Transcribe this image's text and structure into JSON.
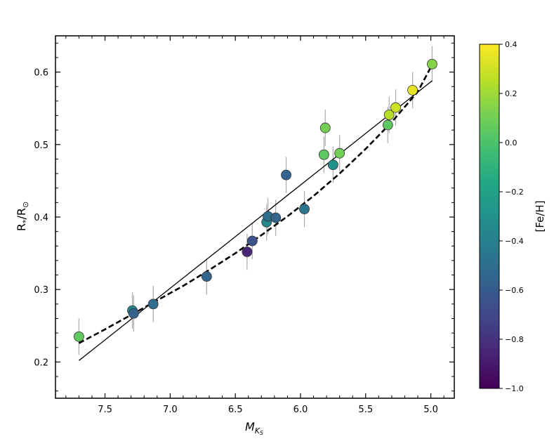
{
  "chart_data": {
    "type": "scatter",
    "xlabel_base": "M",
    "xlabel_sub": "K",
    "xlabel_subsub": "S",
    "ylabel_main": "R",
    "ylabel_star": "*",
    "ylabel_sep": "/R",
    "ylabel_sun": "⊙",
    "xlim": [
      7.88,
      4.82
    ],
    "ylim": [
      0.15,
      0.65
    ],
    "x_ticks": [
      7.5,
      7.0,
      6.5,
      6.0,
      5.5,
      5.0
    ],
    "x_tick_labels": [
      "7.5",
      "7.0",
      "6.5",
      "6.0",
      "5.5",
      "5.0"
    ],
    "y_ticks": [
      0.2,
      0.3,
      0.4,
      0.5,
      0.6
    ],
    "y_tick_labels": [
      "0.2",
      "0.3",
      "0.4",
      "0.5",
      "0.6"
    ],
    "grid": false,
    "colorbar": {
      "label": "[Fe/H]",
      "colormap": "viridis",
      "min": -1.0,
      "max": 0.4,
      "ticks": [
        -1.0,
        -0.8,
        -0.6,
        -0.4,
        -0.2,
        0.0,
        0.2,
        0.4
      ],
      "tick_labels": [
        "−1.0",
        "−0.8",
        "−0.6",
        "−0.4",
        "−0.2",
        "0.0",
        "0.2",
        "0.4"
      ]
    },
    "points": [
      {
        "x": 7.7,
        "y": 0.235,
        "yerr": 0.025,
        "feh": 0.05
      },
      {
        "x": 7.29,
        "y": 0.271,
        "yerr": 0.025,
        "feh": -0.35
      },
      {
        "x": 7.28,
        "y": 0.267,
        "yerr": 0.025,
        "feh": -0.55
      },
      {
        "x": 7.13,
        "y": 0.28,
        "yerr": 0.025,
        "feh": -0.5
      },
      {
        "x": 6.72,
        "y": 0.318,
        "yerr": 0.025,
        "feh": -0.55
      },
      {
        "x": 6.41,
        "y": 0.352,
        "yerr": 0.025,
        "feh": -0.85
      },
      {
        "x": 6.37,
        "y": 0.367,
        "yerr": 0.025,
        "feh": -0.65
      },
      {
        "x": 6.26,
        "y": 0.393,
        "yerr": 0.025,
        "feh": -0.35
      },
      {
        "x": 6.25,
        "y": 0.401,
        "yerr": 0.025,
        "feh": -0.5
      },
      {
        "x": 6.19,
        "y": 0.399,
        "yerr": 0.025,
        "feh": -0.55
      },
      {
        "x": 6.11,
        "y": 0.458,
        "yerr": 0.025,
        "feh": -0.55
      },
      {
        "x": 5.97,
        "y": 0.411,
        "yerr": 0.025,
        "feh": -0.45
      },
      {
        "x": 5.82,
        "y": 0.486,
        "yerr": 0.025,
        "feh": 0.05
      },
      {
        "x": 5.81,
        "y": 0.523,
        "yerr": 0.025,
        "feh": 0.1
      },
      {
        "x": 5.75,
        "y": 0.472,
        "yerr": 0.025,
        "feh": -0.3
      },
      {
        "x": 5.7,
        "y": 0.488,
        "yerr": 0.025,
        "feh": 0.1
      },
      {
        "x": 5.33,
        "y": 0.527,
        "yerr": 0.025,
        "feh": 0.05
      },
      {
        "x": 5.32,
        "y": 0.541,
        "yerr": 0.025,
        "feh": 0.25
      },
      {
        "x": 5.27,
        "y": 0.551,
        "yerr": 0.025,
        "feh": 0.3
      },
      {
        "x": 5.14,
        "y": 0.575,
        "yerr": 0.025,
        "feh": 0.35
      },
      {
        "x": 4.99,
        "y": 0.611,
        "yerr": 0.025,
        "feh": 0.15
      }
    ],
    "linear_fit": {
      "x": [
        7.7,
        4.99
      ],
      "y": [
        0.202,
        0.588
      ]
    },
    "dashed_fit": {
      "x": [
        7.7,
        7.5,
        7.3,
        7.1,
        6.9,
        6.7,
        6.5,
        6.3,
        6.1,
        5.9,
        5.7,
        5.5,
        5.3,
        5.1,
        4.99
      ],
      "y": [
        0.226,
        0.245,
        0.265,
        0.285,
        0.305,
        0.327,
        0.35,
        0.375,
        0.401,
        0.429,
        0.46,
        0.494,
        0.531,
        0.573,
        0.61
      ]
    }
  }
}
